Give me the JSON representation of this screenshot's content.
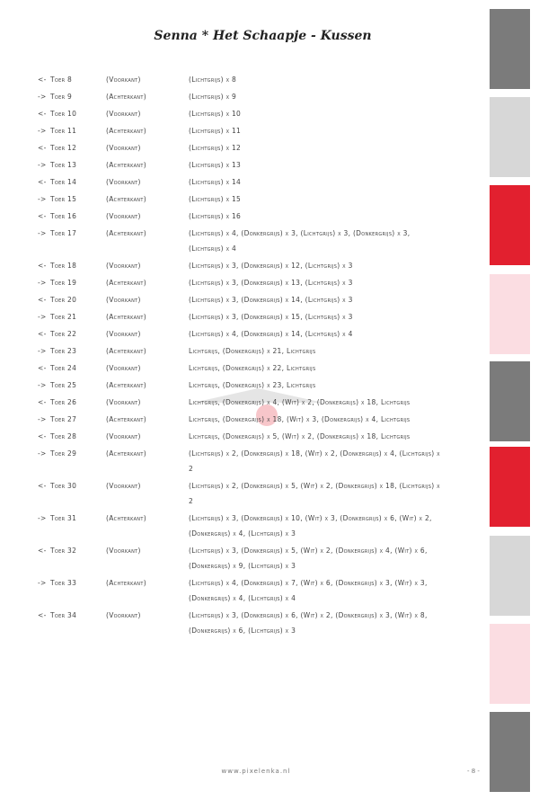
{
  "title": "Senna * Het Schaapje - Kussen",
  "rows": [
    {
      "dir": "<-",
      "toer": "Toer 8",
      "side": "(Voorkant)",
      "colors": "(Lichtgrijs) x 8"
    },
    {
      "dir": "->",
      "toer": "Toer 9",
      "side": "(Achterkant)",
      "colors": "(Lichtgrijs) x 9"
    },
    {
      "dir": "<-",
      "toer": "Toer 10",
      "side": "(Voorkant)",
      "colors": "(Lichtgrijs) x 10"
    },
    {
      "dir": "->",
      "toer": "Toer 11",
      "side": "(Achterkant)",
      "colors": "(Lichtgrijs) x 11"
    },
    {
      "dir": "<-",
      "toer": "Toer 12",
      "side": "(Voorkant)",
      "colors": "(Lichtgrijs) x 12"
    },
    {
      "dir": "->",
      "toer": "Toer 13",
      "side": "(Achterkant)",
      "colors": "(Lichtgrijs) x 13"
    },
    {
      "dir": "<-",
      "toer": "Toer 14",
      "side": "(Voorkant)",
      "colors": "(Lichtgrijs) x 14"
    },
    {
      "dir": "->",
      "toer": "Toer 15",
      "side": "(Achterkant)",
      "colors": "(Lichtgrijs) x 15"
    },
    {
      "dir": "<-",
      "toer": "Toer 16",
      "side": "(Voorkant)",
      "colors": "(Lichtgrijs) x 16"
    },
    {
      "dir": "->",
      "toer": "Toer 17",
      "side": "(Achterkant)",
      "colors": "(Lichtgrijs) x 4, (Donkergrijs) x 3, (Lichtgrijs) x 3, (Donkergrijs) x 3, (Lichtgrijs) x 4"
    },
    {
      "dir": "<-",
      "toer": "Toer 18",
      "side": "(Voorkant)",
      "colors": "(Lichtgrijs) x 3, (Donkergrijs) x 12, (Lichtgrijs) x 3"
    },
    {
      "dir": "->",
      "toer": "Toer 19",
      "side": "(Achterkant)",
      "colors": "(Lichtgrijs) x 3, (Donkergrijs) x 13, (Lichtgrijs) x 3"
    },
    {
      "dir": "<-",
      "toer": "Toer 20",
      "side": "(Voorkant)",
      "colors": "(Lichtgrijs) x 3, (Donkergrijs) x 14, (Lichtgrijs) x 3"
    },
    {
      "dir": "->",
      "toer": "Toer 21",
      "side": "(Achterkant)",
      "colors": "(Lichtgrijs) x 3, (Donkergrijs) x 15, (Lichtgrijs) x 3"
    },
    {
      "dir": "<-",
      "toer": "Toer 22",
      "side": "(Voorkant)",
      "colors": "(Lichtgrijs) x 4, (Donkergrijs) x 14, (Lichtgrijs) x 4"
    },
    {
      "dir": "->",
      "toer": "Toer 23",
      "side": "(Achterkant)",
      "colors": "Lichtgrijs, (Donkergrijs) x 21, Lichtgrijs"
    },
    {
      "dir": "<-",
      "toer": "Toer 24",
      "side": "(Voorkant)",
      "colors": "Lichtgrijs, (Donkergrijs) x 22, Lichtgrijs"
    },
    {
      "dir": "->",
      "toer": "Toer 25",
      "side": "(Achterkant)",
      "colors": "Lichtgrijs, (Donkergrijs) x 23, Lichtgrijs"
    },
    {
      "dir": "<-",
      "toer": "Toer 26",
      "side": "(Voorkant)",
      "colors": "Lichtgrijs, (Donkergrijs) x 4, (Wit) x 2, (Donkergrijs) x 18, Lichtgrijs"
    },
    {
      "dir": "->",
      "toer": "Toer 27",
      "side": "(Achterkant)",
      "colors": "Lichtgrijs, (Donkergrijs) x 18, (Wit) x 3, (Donkergrijs) x 4, Lichtgrijs"
    },
    {
      "dir": "<-",
      "toer": "Toer 28",
      "side": "(Voorkant)",
      "colors": "Lichtgrijs, (Donkergrijs) x 5, (Wit) x 2, (Donkergrijs) x 18, Lichtgrijs"
    },
    {
      "dir": "->",
      "toer": "Toer 29",
      "side": "(Achterkant)",
      "colors": "(Lichtgrijs) x 2, (Donkergrijs) x 18, (Wit) x 2, (Donkergrijs) x 4, (Lichtgrijs) x 2"
    },
    {
      "dir": "<-",
      "toer": "Toer 30",
      "side": "(Voorkant)",
      "colors": "(Lichtgrijs) x 2, (Donkergrijs) x 5, (Wit) x 2, (Donkergrijs) x 18, (Lichtgrijs) x 2"
    },
    {
      "dir": "->",
      "toer": "Toer 31",
      "side": "(Achterkant)",
      "colors": "(Lichtgrijs) x 3, (Donkergrijs) x 10, (Wit) x 3, (Donkergrijs) x 6, (Wit) x 2, (Donkergrijs) x 4, (Lichtgrijs) x 3"
    },
    {
      "dir": "<-",
      "toer": "Toer 32",
      "side": "(Voorkant)",
      "colors": "(Lichtgrijs) x 3, (Donkergrijs) x 5, (Wit) x 2, (Donkergrijs) x 4, (Wit) x 6, (Donkergrijs) x 9, (Lichtgrijs) x 3"
    },
    {
      "dir": "->",
      "toer": "Toer 33",
      "side": "(Achterkant)",
      "colors": "(Lichtgrijs) x 4, (Donkergrijs) x 7, (Wit) x 6, (Donkergrijs) x 3, (Wit) x 3, (Donkergrijs) x 4, (Lichtgrijs) x 4"
    },
    {
      "dir": "<-",
      "toer": "Toer 34",
      "side": "(Voorkant)",
      "colors": "(Lichtgrijs) x 3, (Donkergrijs) x 6, (Wit) x 2, (Donkergrijs) x 3, (Wit) x 8, (Donkergrijs) x 6, (Lichtgrijs) x 3"
    }
  ],
  "sidebar_colors": [
    "#7b7b7b",
    "#d7d7d7",
    "#e2202f",
    "#fbdde2",
    "#7b7b7b",
    "#e2202f",
    "#d7d7d7",
    "#fbdde2",
    "#7b7b7b"
  ],
  "footer": "www.pixelenka.nl",
  "page_number": "- 8 -"
}
